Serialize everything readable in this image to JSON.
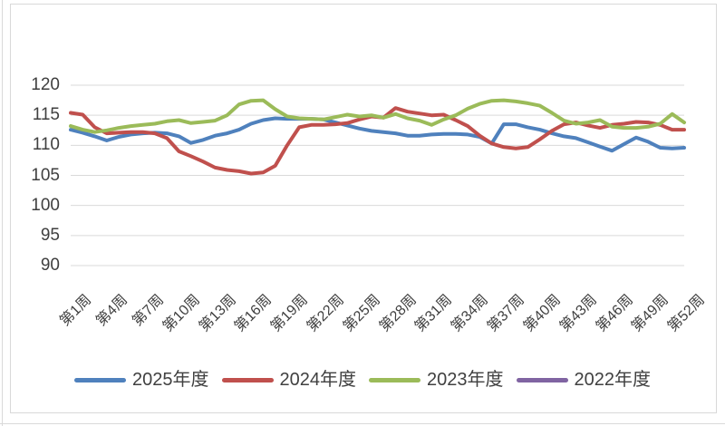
{
  "chart_data": {
    "type": "line",
    "title": "",
    "grid": true,
    "legend_position": "bottom",
    "y_axis": {
      "tick_labels": [
        "120",
        "115",
        "110",
        "105",
        "100",
        "95",
        "90"
      ],
      "tick_values": [
        120,
        115,
        110,
        105,
        100,
        95,
        90
      ],
      "min": 90,
      "max": 120
    },
    "x_axis": {
      "unit": "week",
      "total_weeks": 52,
      "tick_labels": [
        "第1周",
        "第4周",
        "第7周",
        "第10周",
        "第13周",
        "第16周",
        "第19周",
        "第22周",
        "第25周",
        "第28周",
        "第31周",
        "第34周",
        "第37周",
        "第40周",
        "第43周",
        "第46周",
        "第49周",
        "第52周"
      ],
      "tick_weeks": [
        1,
        4,
        7,
        10,
        13,
        16,
        19,
        22,
        25,
        28,
        31,
        34,
        37,
        40,
        43,
        46,
        49,
        52
      ]
    },
    "series": [
      {
        "id": "2025",
        "name": "2025年度",
        "color": "#4F81BD",
        "values": [
          112.6,
          112.1,
          111.5,
          110.8,
          111.4,
          111.8,
          112.0,
          112.1,
          112.0,
          111.5,
          110.4,
          110.9,
          111.6,
          112.0,
          112.6,
          113.6,
          114.2,
          114.5,
          114.4,
          114.4,
          114.4,
          114.3,
          113.8,
          113.3,
          112.8,
          112.4,
          112.2,
          112.0,
          111.6,
          111.6,
          111.8,
          111.9,
          111.9,
          111.8,
          111.4,
          110.3,
          113.5,
          113.5,
          113.0,
          112.6,
          112.0,
          111.5,
          111.2,
          110.5,
          109.8,
          109.1,
          110.2,
          111.3,
          110.6,
          109.6,
          109.5,
          109.6
        ]
      },
      {
        "id": "2024",
        "name": "2024年度",
        "color": "#C0504D",
        "values": [
          115.4,
          115.1,
          113.0,
          112.0,
          112.1,
          112.2,
          112.2,
          112.0,
          111.2,
          109.0,
          108.2,
          107.3,
          106.3,
          105.9,
          105.7,
          105.3,
          105.5,
          106.6,
          110.0,
          113.0,
          113.4,
          113.4,
          113.5,
          113.7,
          114.3,
          114.8,
          114.6,
          116.2,
          115.6,
          115.3,
          115.0,
          115.1,
          114.2,
          113.2,
          111.6,
          110.3,
          109.7,
          109.5,
          109.7,
          111.0,
          112.4,
          113.5,
          113.8,
          113.3,
          112.9,
          113.4,
          113.6,
          113.9,
          113.8,
          113.4,
          112.6,
          112.6
        ]
      },
      {
        "id": "2023",
        "name": "2023年度",
        "color": "#9BBB59",
        "values": [
          113.2,
          112.6,
          112.2,
          112.5,
          112.9,
          113.2,
          113.4,
          113.6,
          114.0,
          114.2,
          113.7,
          113.9,
          114.1,
          115.0,
          116.8,
          117.4,
          117.5,
          116.0,
          114.8,
          114.5,
          114.4,
          114.3,
          114.7,
          115.1,
          114.8,
          115.0,
          114.6,
          115.2,
          114.5,
          114.1,
          113.4,
          114.3,
          115.0,
          116.1,
          116.9,
          117.4,
          117.5,
          117.3,
          117.0,
          116.6,
          115.4,
          114.1,
          113.6,
          113.8,
          114.2,
          113.1,
          112.9,
          112.9,
          113.1,
          113.6,
          115.2,
          113.8
        ]
      },
      {
        "id": "2022",
        "name": "2022年度",
        "color": "#8064A2",
        "values": []
      }
    ]
  }
}
